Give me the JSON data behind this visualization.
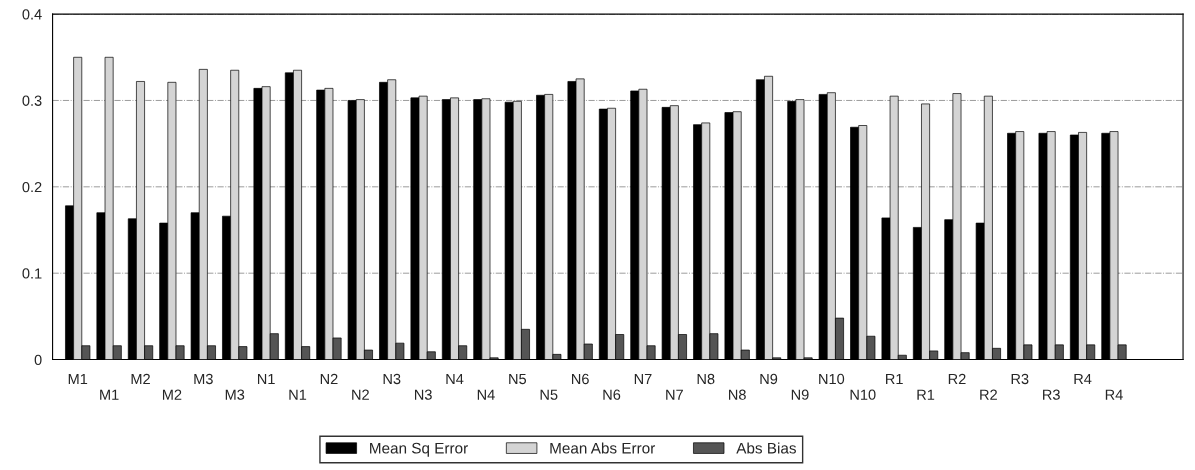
{
  "chart_data": {
    "type": "bar",
    "categories": [
      "M1",
      "M1",
      "M2",
      "M2",
      "M3",
      "M3",
      "N1",
      "N1",
      "N2",
      "N2",
      "N3",
      "N3",
      "N4",
      "N4",
      "N5",
      "N5",
      "N6",
      "N6",
      "N7",
      "N7",
      "N8",
      "N8",
      "N9",
      "N9",
      "N10",
      "N10",
      "R1",
      "R1",
      "R2",
      "R2",
      "R3",
      "R3",
      "R4",
      "R4"
    ],
    "series": [
      {
        "name": "Mean Sq Error",
        "color": "#000000",
        "values": [
          0.178,
          0.17,
          0.163,
          0.158,
          0.17,
          0.166,
          0.314,
          0.332,
          0.312,
          0.3,
          0.321,
          0.303,
          0.301,
          0.301,
          0.298,
          0.306,
          0.322,
          0.29,
          0.311,
          0.292,
          0.272,
          0.286,
          0.324,
          0.299,
          0.307,
          0.269,
          0.164,
          0.153,
          0.162,
          0.158,
          0.262,
          0.262,
          0.26,
          0.262
        ]
      },
      {
        "name": "Mean Abs Error",
        "color": "#d4d4d4",
        "values": [
          0.35,
          0.35,
          0.322,
          0.321,
          0.336,
          0.335,
          0.316,
          0.335,
          0.314,
          0.301,
          0.324,
          0.305,
          0.303,
          0.302,
          0.299,
          0.307,
          0.325,
          0.291,
          0.313,
          0.294,
          0.274,
          0.287,
          0.328,
          0.301,
          0.309,
          0.271,
          0.305,
          0.296,
          0.308,
          0.305,
          0.264,
          0.264,
          0.263,
          0.264
        ]
      },
      {
        "name": "Abs Bias",
        "color": "#555555",
        "values": [
          0.016,
          0.016,
          0.016,
          0.016,
          0.016,
          0.015,
          0.03,
          0.015,
          0.025,
          0.011,
          0.019,
          0.009,
          0.016,
          0.002,
          0.035,
          0.006,
          0.018,
          0.029,
          0.016,
          0.029,
          0.03,
          0.011,
          0.002,
          0.002,
          0.048,
          0.027,
          0.005,
          0.01,
          0.008,
          0.013,
          0.017,
          0.017,
          0.017,
          0.017
        ]
      }
    ],
    "ylim": [
      0,
      0.4
    ],
    "yticks": [
      {
        "value": 0,
        "label": "0"
      },
      0.1,
      0.2,
      0.3,
      0.4
    ],
    "grid": "y",
    "legend": "bottom"
  }
}
